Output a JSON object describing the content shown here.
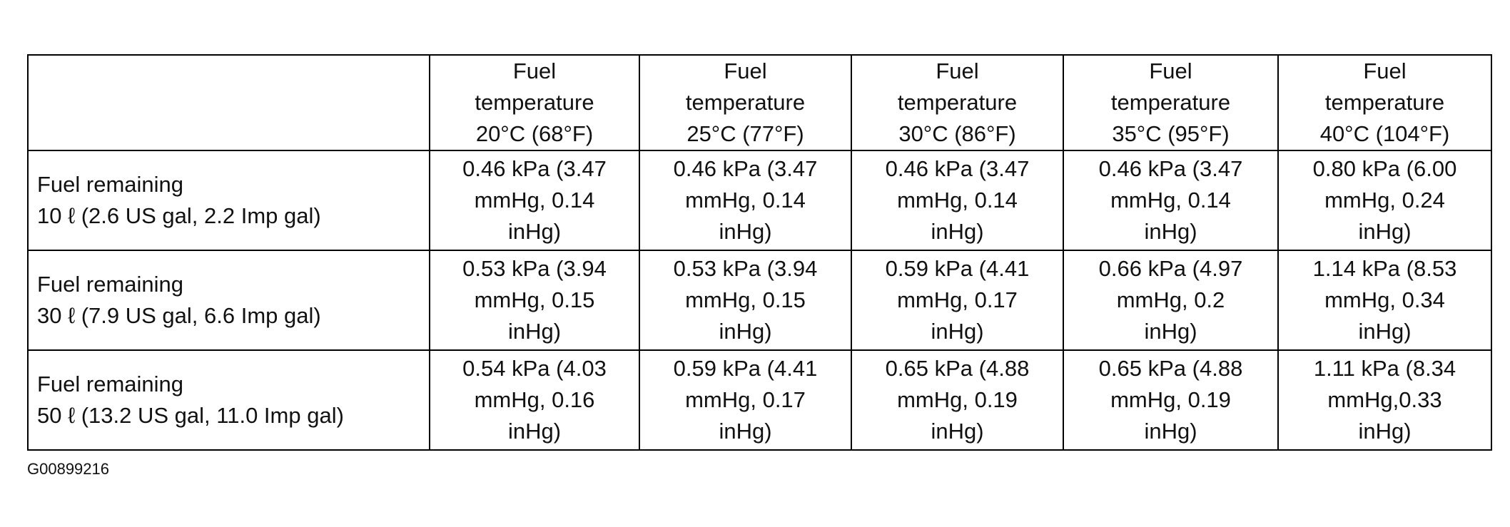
{
  "table": {
    "columns": [
      "Fuel\ntemperature\n20°C (68°F)",
      "Fuel\ntemperature\n25°C (77°F)",
      "Fuel\ntemperature\n30°C (86°F)",
      "Fuel\ntemperature\n35°C (95°F)",
      "Fuel\ntemperature\n40°C (104°F)"
    ],
    "rows": [
      {
        "label": "Fuel remaining\n10 ℓ (2.6 US gal, 2.2 Imp gal)",
        "cells": [
          "0.46 kPa (3.47\nmmHg, 0.14\ninHg)",
          "0.46 kPa (3.47\nmmHg, 0.14\ninHg)",
          "0.46 kPa (3.47\nmmHg, 0.14\ninHg)",
          "0.46 kPa (3.47\nmmHg, 0.14\ninHg)",
          "0.80 kPa (6.00\nmmHg, 0.24\ninHg)"
        ]
      },
      {
        "label": "Fuel remaining\n30 ℓ (7.9 US gal, 6.6 Imp gal)",
        "cells": [
          "0.53 kPa (3.94\nmmHg, 0.15\ninHg)",
          "0.53 kPa (3.94\nmmHg, 0.15\ninHg)",
          "0.59 kPa (4.41\nmmHg, 0.17\ninHg)",
          "0.66 kPa (4.97\nmmHg, 0.2\ninHg)",
          "1.14 kPa (8.53\nmmHg, 0.34\ninHg)"
        ]
      },
      {
        "label": "Fuel remaining\n50 ℓ (13.2 US gal, 11.0 Imp gal)",
        "cells": [
          "0.54 kPa (4.03\nmmHg, 0.16\ninHg)",
          "0.59 kPa (4.41\nmmHg, 0.17\ninHg)",
          "0.65 kPa (4.88\nmmHg, 0.19\ninHg)",
          "0.65 kPa (4.88\nmmHg, 0.19\ninHg)",
          "1.11 kPa (8.34\nmmHg,0.33\ninHg)"
        ]
      }
    ]
  },
  "caption": "G00899216"
}
